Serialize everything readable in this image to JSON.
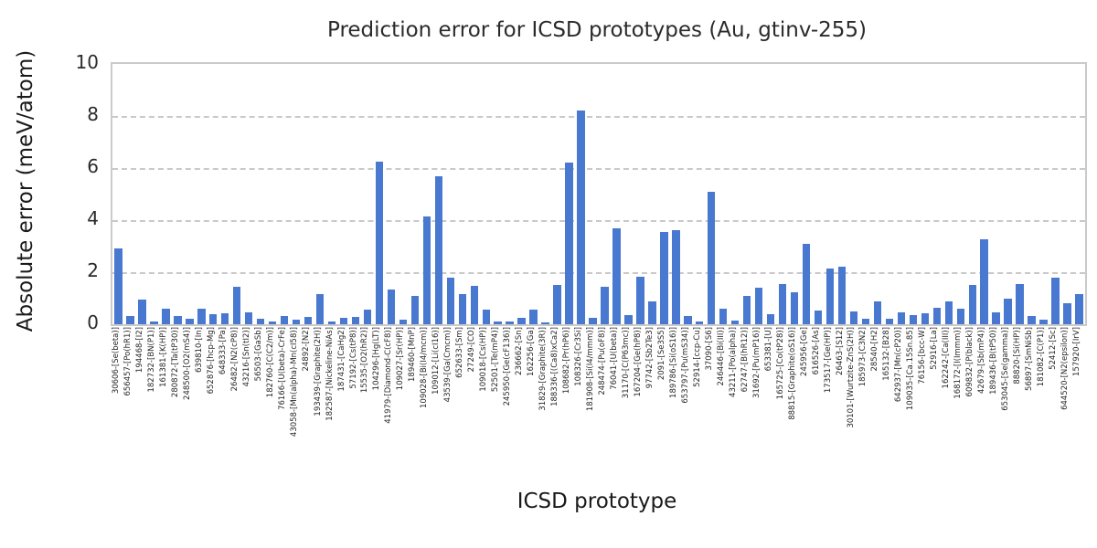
{
  "chart_data": {
    "type": "bar",
    "title": "Prediction error for ICSD prototypes (Au, gtinv-255)",
    "xlabel": "ICSD prototype",
    "ylabel": "Absolute error (meV/atom)",
    "ylim": [
      0,
      10
    ],
    "yticks": [
      0,
      2,
      4,
      6,
      8,
      10
    ],
    "grid": "horizontal-dashed",
    "legend": "none",
    "bar_color": "#4878d0",
    "categories": [
      "30606-[Se(beta)]",
      "656457-[Po(hR1)]",
      "194468-[I2]",
      "182732-[BN(P1)]",
      "161381-[K(HP)]",
      "280872-[Ta(tP30)]",
      "248500-[O2(mS4)]",
      "639810-[In]",
      "652876-[hcp-Mg]",
      "648333-[Pa]",
      "26482-[N2(cP8)]",
      "43216-[Sn(tI2)]",
      "56503-[GaSb]",
      "182760-[C(C2/m)]",
      "76166-[U(beta)-CrFe]",
      "43058-[Mn(alpha)-Mn(cI58)]",
      "24892-[N2]",
      "193439-[Graphite(2H)]",
      "182587-[Nickeline-NiAs]",
      "187431-[CaHg2]",
      "57192-[Cs(tP8)]",
      "15535-[O2(hR2)]",
      "104296-[Hg(LT)]",
      "41979-[Diamond-C(cF8)]",
      "109027-[Sr(HP)]",
      "189460-[MnP]",
      "109028-[Bi(I4/mcm)]",
      "109012-[Li(cI16)]",
      "43539-[Ga(Cmcm)]",
      "652633-[Sm]",
      "27249-[CO]",
      "109018-[Cs(HP)]",
      "52501-[Te(mP4)]",
      "245950-[Ge(cF136)]",
      "236662-[Sn]",
      "162256-[Ga]",
      "31829-[Graphite(3R)]",
      "188336-[(Ca8)xCa2]",
      "108682-[Pr(hP6)]",
      "108326-[Cr3Si]",
      "181908-[Si(I4/mmm)]",
      "248474-[Pu(oF8)]",
      "76041-[U(beta)]",
      "31170-[C(P63mc)]",
      "167204-[Ge(hP8)]",
      "97742-[Sb2Te3]",
      "2091-[Se3S5]",
      "189786-[Si(oS16)]",
      "653797-[Pu(mS34)]",
      "52914-[ccp-Cu]",
      "37090-[S6]",
      "246446-[Bi(III)]",
      "43211-[Po(alpha)]",
      "62747-[B(hR12)]",
      "31692-[Pu(mP16)]",
      "653381-[U]",
      "165725-[Co(tP28)]",
      "88815-[Graphite(oS16)]",
      "245956-[Ge]",
      "616526-[As]",
      "173517-[Ge(HP)]",
      "26463-[S12]",
      "30101-[Wurtzite-ZnS(2H)]",
      "185973-[C3N2]",
      "28540-[H2]",
      "165132-[B28]",
      "642937-[Mn(cP20)]",
      "109035-[Ca.15Sn.85]",
      "76156-[bcc-W]",
      "52916-[La]",
      "162242-[Ca(III)]",
      "168172-[I(Immm)]",
      "609832-[P(black)]",
      "42679-[Sb(mP4)]",
      "189436-[B(tP50)]",
      "653045-[Se(gamma)]",
      "88820-[Si(HP)]",
      "56897-[SmNiSb]",
      "181082-[C(P1)]",
      "52412-[Sc]",
      "644520-[N2(epsilon)]",
      "157920-[IrV]"
    ],
    "values": [
      2.9,
      0.32,
      0.95,
      0.12,
      0.6,
      0.3,
      0.2,
      0.58,
      0.4,
      0.43,
      1.45,
      0.45,
      0.2,
      0.1,
      0.33,
      0.18,
      0.28,
      1.15,
      0.1,
      0.26,
      0.27,
      0.55,
      6.25,
      1.33,
      0.17,
      1.08,
      4.15,
      5.7,
      1.78,
      1.15,
      1.47,
      0.55,
      0.11,
      0.09,
      0.23,
      0.55,
      0.08,
      1.5,
      6.2,
      8.2,
      0.25,
      1.45,
      3.7,
      0.36,
      1.82,
      0.88,
      3.55,
      3.6,
      0.32,
      0.1,
      5.1,
      0.58,
      0.15,
      1.1,
      1.4,
      0.38,
      1.54,
      1.23,
      3.08,
      0.52,
      2.15,
      2.2,
      0.48,
      0.21,
      0.89,
      0.21,
      0.46,
      0.34,
      0.41,
      0.64,
      0.89,
      0.59,
      1.5,
      3.25,
      0.46,
      1.0,
      1.55,
      0.32,
      0.18,
      1.8,
      0.82,
      1.15
    ]
  }
}
